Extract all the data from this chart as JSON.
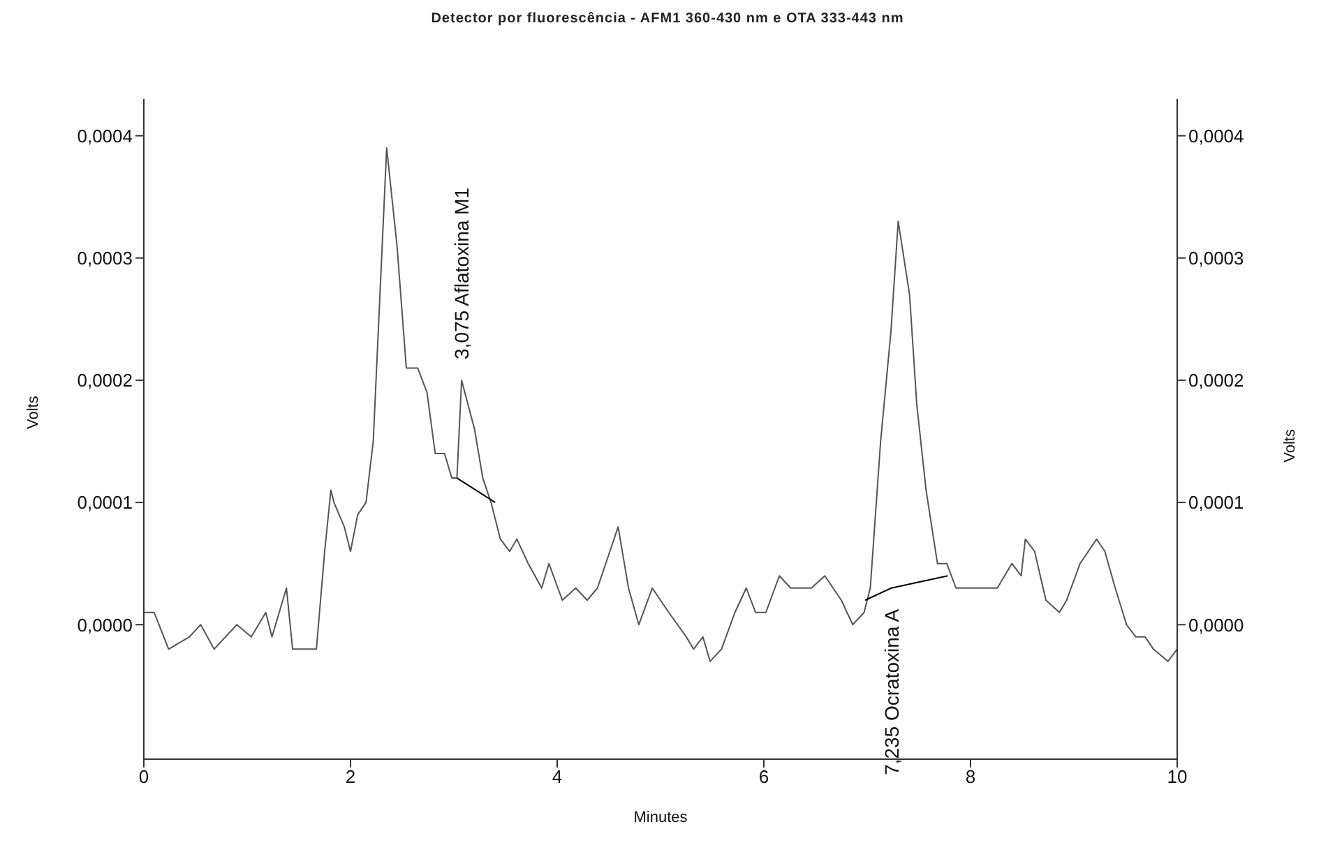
{
  "chart_data": {
    "type": "line",
    "title": "Detector por fluorescência - AFM1 360-430 nm e OTA 333-443 nm",
    "xlabel": "Minutes",
    "ylabel": "Volts",
    "y2label": "Volts",
    "xlim": [
      0,
      10
    ],
    "xticks": [
      0,
      2,
      4,
      6,
      8,
      10
    ],
    "ylim": [
      -0.00011,
      0.00043
    ],
    "yticks": [
      {
        "value": 0,
        "label": "0,0000"
      },
      {
        "value": 0.0001,
        "label": "0,0001"
      },
      {
        "value": 0.0002,
        "label": "0,0002"
      },
      {
        "value": 0.0003,
        "label": "0,0003"
      },
      {
        "value": 0.0004,
        "label": "0,0004"
      }
    ],
    "y2lim": [
      -0.00011,
      0.00043
    ],
    "y2ticks": [
      {
        "value": 0,
        "label": "0,0000"
      },
      {
        "value": 0.0001,
        "label": "0,0001"
      },
      {
        "value": 0.0002,
        "label": "0,0002"
      },
      {
        "value": 0.0003,
        "label": "0,0003"
      },
      {
        "value": 0.0004,
        "label": "0,0004"
      }
    ],
    "grid": false,
    "marker": "none",
    "line_style": "solid",
    "series": [
      {
        "color": "#555555",
        "x": [
          0,
          0.1,
          0.24,
          0.44,
          0.55,
          0.68,
          0.9,
          1.04,
          1.18,
          1.24,
          1.38,
          1.44,
          1.58,
          1.67,
          1.75,
          1.81,
          1.84,
          1.94,
          2.0,
          2.07,
          2.15,
          2.22,
          2.35,
          2.45,
          2.54,
          2.65,
          2.74,
          2.82,
          2.91,
          2.98,
          3.03,
          3.075,
          3.2,
          3.28,
          3.36,
          3.45,
          3.54,
          3.61,
          3.72,
          3.85,
          3.92,
          4.05,
          4.18,
          4.29,
          4.39,
          4.59,
          4.69,
          4.79,
          4.92,
          5.08,
          5.25,
          5.32,
          5.41,
          5.48,
          5.59,
          5.72,
          5.83,
          5.92,
          6.02,
          6.15,
          6.26,
          6.46,
          6.59,
          6.75,
          6.86,
          6.97,
          7.03,
          7.13,
          7.23,
          7.3,
          7.41,
          7.48,
          7.57,
          7.68,
          7.77,
          7.86,
          7.99,
          8.13,
          8.26,
          8.4,
          8.49,
          8.53,
          8.62,
          8.73,
          8.86,
          8.93,
          9.06,
          9.22,
          9.3,
          9.4,
          9.51,
          9.6,
          9.69,
          9.77,
          9.91,
          10
        ],
        "values": [
          1e-05,
          1e-05,
          -2e-05,
          -1e-05,
          0,
          -2e-05,
          0,
          -1e-05,
          1e-05,
          -1e-05,
          3e-05,
          -2e-05,
          -2e-05,
          -2e-05,
          6e-05,
          0.00011,
          0.0001,
          8e-05,
          6e-05,
          9e-05,
          0.0001,
          0.00015,
          0.00039,
          0.00031,
          0.00021,
          0.00021,
          0.00019,
          0.00014,
          0.00014,
          0.00012,
          0.00012,
          0.0002,
          0.00016,
          0.00012,
          0.0001,
          7e-05,
          6e-05,
          7e-05,
          5e-05,
          3e-05,
          5e-05,
          2e-05,
          3e-05,
          2e-05,
          3e-05,
          8e-05,
          3e-05,
          0,
          3e-05,
          1e-05,
          -1e-05,
          -2e-05,
          -1e-05,
          -3e-05,
          -2e-05,
          1e-05,
          3e-05,
          1e-05,
          1e-05,
          4e-05,
          3e-05,
          3e-05,
          4e-05,
          2e-05,
          0,
          1e-05,
          3e-05,
          0.00015,
          0.00024,
          0.00033,
          0.00027,
          0.00018,
          0.00011,
          5e-05,
          5e-05,
          3e-05,
          3e-05,
          3e-05,
          3e-05,
          5e-05,
          4e-05,
          7e-05,
          6e-05,
          2e-05,
          1e-05,
          2e-05,
          5e-05,
          7e-05,
          6e-05,
          3e-05,
          0,
          -1e-05,
          -1e-05,
          -2e-05,
          -3e-05,
          -2e-05
        ]
      },
      {
        "type": "line",
        "color": "#000000",
        "x": [
          3.03,
          3.4
        ],
        "values": [
          0.00012,
          0.0001
        ]
      },
      {
        "type": "line",
        "color": "#000000",
        "x": [
          6.98,
          7.235,
          7.78
        ],
        "values": [
          2e-05,
          3e-05,
          4e-05
        ]
      }
    ],
    "annotations": [
      {
        "text": "3,075  Aflatoxina M1",
        "x": 3.075,
        "y": 0.0002
      },
      {
        "text": "7,235  Ocratoxina A",
        "x": 7.235,
        "y": 3e-05
      }
    ]
  }
}
